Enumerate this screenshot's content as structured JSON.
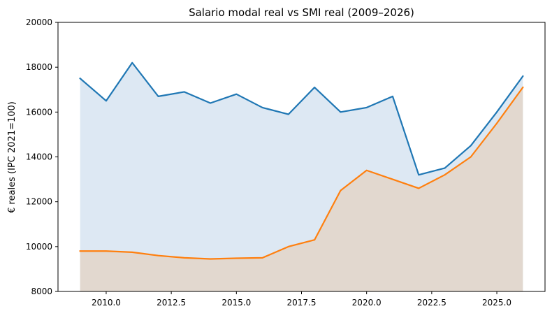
{
  "chart_data": {
    "type": "area",
    "title": "Salario modal real vs SMI real (2009–2026)",
    "xlabel": "",
    "ylabel": "€ reales (IPC 2021=100)",
    "xlim": [
      2008.15,
      2026.85
    ],
    "ylim": [
      8000,
      20000
    ],
    "x_ticks": [
      2010.0,
      2012.5,
      2015.0,
      2017.5,
      2020.0,
      2022.5,
      2025.0
    ],
    "x_tick_labels": [
      "2010.0",
      "2012.5",
      "2015.0",
      "2017.5",
      "2020.0",
      "2022.5",
      "2025.0"
    ],
    "y_ticks": [
      8000,
      10000,
      12000,
      14000,
      16000,
      18000,
      20000
    ],
    "y_tick_labels": [
      "8000",
      "10000",
      "12000",
      "14000",
      "16000",
      "18000",
      "20000"
    ],
    "grid": false,
    "x": [
      2009,
      2010,
      2011,
      2012,
      2013,
      2014,
      2015,
      2016,
      2017,
      2018,
      2019,
      2020,
      2021,
      2022,
      2023,
      2024,
      2025,
      2026
    ],
    "series": [
      {
        "color": "#1f77b4",
        "fill": "#dde8f3",
        "values": [
          17500,
          16500,
          18200,
          16700,
          16900,
          16400,
          16800,
          16200,
          15900,
          17100,
          16000,
          16200,
          16700,
          13200,
          13500,
          14500,
          16000,
          17600
        ]
      },
      {
        "color": "#ff7f0e",
        "fill": "#e2d8cf",
        "values": [
          9800,
          9800,
          9750,
          9600,
          9500,
          9450,
          9480,
          9500,
          10000,
          10300,
          12500,
          13400,
          13000,
          12600,
          13200,
          14000,
          15500,
          17100
        ]
      }
    ]
  }
}
